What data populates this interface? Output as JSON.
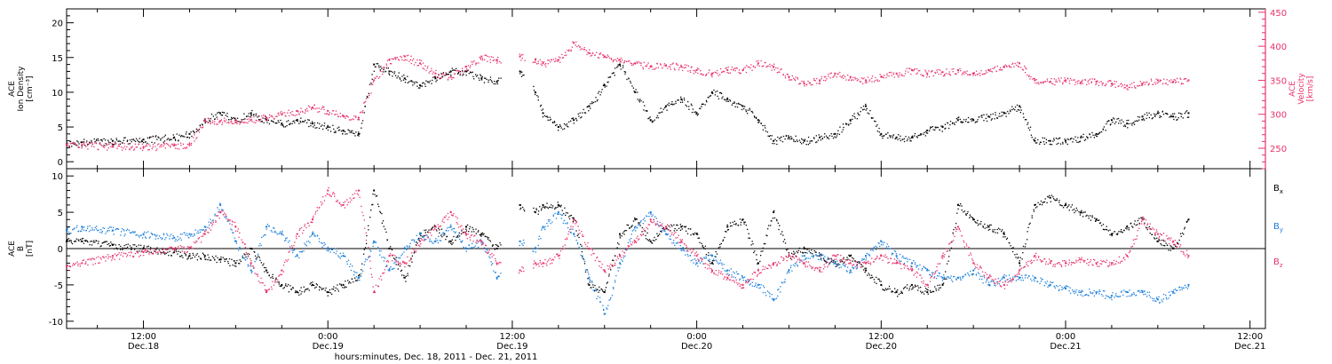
{
  "colors": {
    "black": "#000000",
    "pink": "#e8336b",
    "blue": "#1c7fdb"
  },
  "xaxis": {
    "label": "hours:minutes, Dec. 18, 2011 - Dec. 21, 2011",
    "ticks": [
      {
        "time": "12:00",
        "date": "Dec.18",
        "t": 12
      },
      {
        "time": "0:00",
        "date": "Dec.19",
        "t": 24
      },
      {
        "time": "12:00",
        "date": "Dec.19",
        "t": 36
      },
      {
        "time": "0:00",
        "date": "Dec.20",
        "t": 48
      },
      {
        "time": "12:00",
        "date": "Dec.20",
        "t": 60
      },
      {
        "time": "0:00",
        "date": "Dec.21",
        "t": 72
      },
      {
        "time": "12:00",
        "date": "Dec.21",
        "t": 84
      }
    ]
  },
  "chart_data": [
    {
      "type": "scatter",
      "title": "",
      "xlim": [
        7,
        85
      ],
      "ylabel_left": [
        "ACE",
        "Ion Density",
        "[cm⁻³]"
      ],
      "ylim_left": [
        -1,
        22
      ],
      "yticks_left": [
        "0",
        "5",
        "10",
        "15",
        "20"
      ],
      "ylabel_right": [
        "ACE",
        "Velocity",
        "[km/s]"
      ],
      "ylim_right": [
        220,
        455
      ],
      "yticks_right": [
        "250",
        "300",
        "350",
        "400",
        "450"
      ],
      "series": [
        {
          "color": "#000000",
          "x": [
            7,
            8,
            10,
            12,
            14,
            15,
            16,
            17,
            18,
            19,
            20,
            21,
            22,
            23,
            24,
            25,
            26,
            27,
            28,
            29,
            30,
            31,
            32,
            33,
            34,
            35,
            36.5,
            37.5,
            38,
            39,
            40,
            41,
            42,
            43,
            44,
            45,
            46,
            47,
            48,
            49,
            50,
            51,
            52,
            53,
            54,
            55,
            56,
            57,
            58,
            59,
            60,
            61,
            62,
            63,
            64,
            65,
            66,
            67,
            68,
            69,
            70,
            71,
            72,
            73,
            74,
            75,
            76,
            77,
            78,
            79,
            80
          ],
          "y": [
            2.5,
            2.8,
            3,
            3.2,
            3.5,
            4,
            6,
            7,
            6,
            7,
            6,
            5.5,
            6,
            5.5,
            5,
            4.5,
            4,
            14,
            13,
            12,
            11,
            12,
            13,
            13,
            12,
            11.5,
            13,
            10,
            7,
            5,
            6,
            8,
            11,
            14,
            10,
            6,
            8,
            9,
            7,
            10,
            9,
            8,
            6,
            3,
            3.5,
            3,
            3.5,
            4,
            6,
            8,
            4,
            3.5,
            3.5,
            4.5,
            5,
            6,
            6,
            6.5,
            7,
            8,
            3,
            3,
            3,
            3.5,
            4,
            6,
            5.5,
            6.5,
            7,
            6.5,
            7
          ]
        },
        {
          "color": "#e8336b",
          "x": [
            7,
            8,
            10,
            12,
            14,
            15,
            16,
            17,
            18,
            19,
            20,
            21,
            22,
            23,
            24,
            25,
            26,
            27,
            28,
            29,
            30,
            31,
            32,
            33,
            34,
            35,
            36.5,
            37.5,
            38,
            39,
            40,
            41,
            42,
            43,
            44,
            45,
            46,
            47,
            48,
            49,
            50,
            51,
            52,
            53,
            54,
            55,
            56,
            57,
            58,
            59,
            60,
            61,
            62,
            63,
            64,
            65,
            66,
            67,
            68,
            69,
            70,
            71,
            72,
            73,
            74,
            75,
            76,
            77,
            78,
            79,
            80
          ],
          "y": [
            255,
            255,
            253,
            252,
            254,
            256,
            290,
            290,
            288,
            292,
            295,
            300,
            305,
            310,
            305,
            298,
            295,
            350,
            380,
            385,
            375,
            360,
            355,
            370,
            385,
            380,
            385,
            380,
            375,
            380,
            405,
            390,
            385,
            380,
            375,
            370,
            372,
            370,
            365,
            360,
            365,
            365,
            375,
            370,
            355,
            345,
            350,
            360,
            355,
            350,
            355,
            360,
            365,
            360,
            362,
            365,
            360,
            365,
            370,
            375,
            350,
            348,
            350,
            347,
            348,
            345,
            342,
            345,
            350,
            348,
            350
          ]
        }
      ]
    },
    {
      "type": "scatter",
      "title": "",
      "xlim": [
        7,
        85
      ],
      "ylabel_left": [
        "ACE",
        "B",
        "[nT]"
      ],
      "ylim_left": [
        -11,
        11
      ],
      "yticks_left": [
        "-10",
        "-5",
        "0",
        "5",
        "10"
      ],
      "zero_line": true,
      "series": [
        {
          "name": "Bx",
          "color": "#000000",
          "x": [
            7,
            8,
            10,
            12,
            14,
            15,
            16,
            17,
            18,
            19,
            20,
            21,
            22,
            23,
            24,
            25,
            26,
            27,
            28,
            29,
            30,
            31,
            32,
            33,
            34,
            35,
            36.5,
            37.5,
            38,
            39,
            40,
            41,
            42,
            43,
            44,
            45,
            46,
            47,
            48,
            49,
            50,
            51,
            52,
            53,
            54,
            55,
            56,
            57,
            58,
            59,
            60,
            61,
            62,
            63,
            64,
            65,
            66,
            67,
            68,
            69,
            70,
            71,
            72,
            73,
            74,
            75,
            76,
            77,
            78,
            79,
            80
          ],
          "y": [
            1,
            1,
            0.5,
            0,
            -0.5,
            -1,
            -1,
            -1.5,
            -2,
            0,
            -3,
            -5,
            -6,
            -5,
            -6,
            -5,
            -4,
            8,
            0,
            -4,
            2,
            3,
            1,
            3,
            2,
            0,
            6,
            5,
            6,
            6,
            4,
            -5,
            -6,
            2,
            4,
            1,
            3,
            3,
            2,
            -2,
            3,
            4,
            -2,
            5,
            -1,
            0,
            -1,
            -2,
            -1,
            -3,
            -5,
            -6,
            -5,
            -6,
            -5,
            6,
            4,
            3,
            2,
            -2,
            6,
            7,
            6,
            5,
            4,
            2,
            3,
            4,
            1,
            0,
            4
          ]
        },
        {
          "name": "By",
          "color": "#1c7fdb",
          "x": [
            7,
            8,
            10,
            12,
            14,
            15,
            16,
            17,
            18,
            19,
            20,
            21,
            22,
            23,
            24,
            25,
            26,
            27,
            28,
            29,
            30,
            31,
            32,
            33,
            34,
            35,
            36.5,
            37.5,
            38,
            39,
            40,
            41,
            42,
            43,
            44,
            45,
            46,
            47,
            48,
            49,
            50,
            51,
            52,
            53,
            54,
            55,
            56,
            57,
            58,
            59,
            60,
            61,
            62,
            63,
            64,
            65,
            66,
            67,
            68,
            69,
            70,
            71,
            72,
            73,
            74,
            75,
            76,
            77,
            78,
            79,
            80
          ],
          "y": [
            2.5,
            3,
            2.5,
            2,
            1.5,
            2,
            3,
            6,
            1,
            -3,
            3,
            2,
            -1,
            2,
            0,
            -1,
            -4,
            1,
            -3,
            0,
            2,
            1,
            3,
            0,
            1,
            -4,
            1,
            0,
            3,
            5,
            2,
            -4,
            -9,
            -2,
            3,
            5,
            2,
            0,
            -2,
            -1,
            -3,
            -4,
            -5,
            -7,
            -3,
            -1,
            -1,
            -2,
            -3,
            -1,
            1,
            -1,
            -2,
            -3,
            -4,
            -4,
            -3,
            -5,
            -4,
            -4,
            -4,
            -5,
            -5.5,
            -6,
            -6,
            -6.5,
            -6,
            -6,
            -7,
            -6,
            -5
          ]
        },
        {
          "name": "Bz",
          "color": "#e8336b",
          "x": [
            7,
            8,
            10,
            12,
            14,
            15,
            16,
            17,
            18,
            19,
            20,
            21,
            22,
            23,
            24,
            25,
            26,
            27,
            28,
            29,
            30,
            31,
            32,
            33,
            34,
            35,
            36.5,
            37.5,
            38,
            39,
            40,
            41,
            42,
            43,
            44,
            45,
            46,
            47,
            48,
            49,
            50,
            51,
            52,
            53,
            54,
            55,
            56,
            57,
            58,
            59,
            60,
            61,
            62,
            63,
            64,
            65,
            66,
            67,
            68,
            69,
            70,
            71,
            72,
            73,
            74,
            75,
            76,
            77,
            78,
            79,
            80
          ],
          "y": [
            -2.5,
            -2,
            -1,
            -0.5,
            0,
            0,
            2,
            5,
            3,
            -2,
            -6,
            -3,
            2,
            4,
            8,
            6,
            8,
            -6,
            -1,
            -2,
            1,
            3,
            5,
            2,
            1,
            -2,
            -3,
            -2,
            -2,
            -1,
            4,
            0,
            -3,
            -1,
            1,
            4,
            3,
            1,
            -1,
            -3,
            -4,
            -5,
            -3,
            -2,
            -1,
            -2,
            -3,
            -1,
            -2,
            -2,
            -1,
            -2,
            -3,
            -5,
            -1,
            3,
            -2,
            -4,
            -5,
            -3,
            -1,
            -2,
            -2,
            -1.5,
            -2,
            -2,
            -1,
            4,
            2,
            1,
            -1
          ]
        }
      ]
    }
  ]
}
